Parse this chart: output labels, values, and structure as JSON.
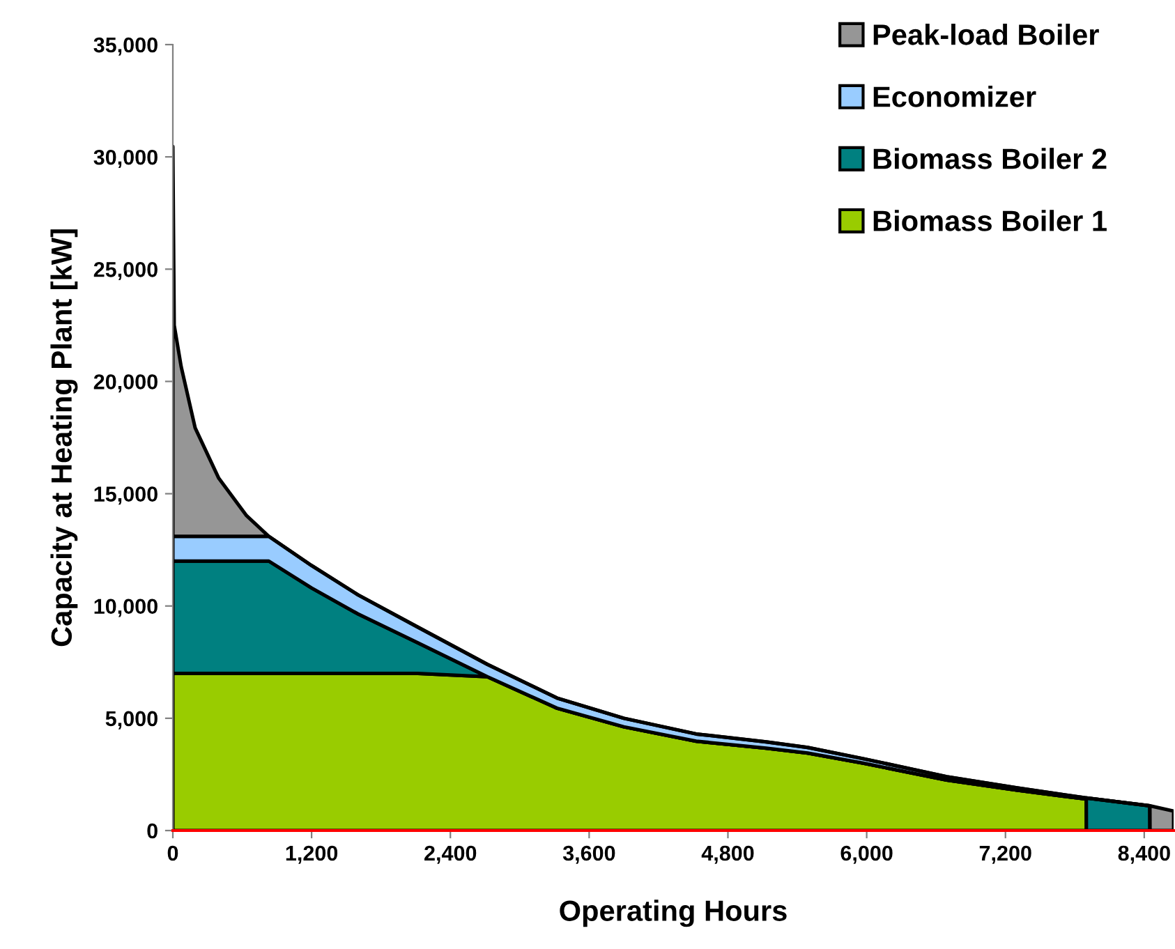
{
  "chart_data": {
    "type": "area",
    "stacked": true,
    "xlabel": "Operating Hours",
    "ylabel": "Capacity at Heating Plant [kW]",
    "x": [
      0,
      12,
      72,
      193,
      397,
      638,
      830,
      1200,
      1600,
      2118,
      2720,
      3322,
      3900,
      4526,
      5130,
      5489,
      5970,
      6692,
      7300,
      7899,
      7900,
      8449,
      8450,
      8654
    ],
    "series": [
      {
        "name": "Biomass Boiler 1",
        "color": "#99cc00",
        "values": [
          7000,
          7000,
          7000,
          7000,
          7000,
          7000,
          7000,
          7000,
          7000,
          7000,
          6850,
          5450,
          4620,
          3980,
          3670,
          3450,
          3000,
          2250,
          1800,
          1400,
          0,
          0,
          0,
          0
        ]
      },
      {
        "name": "Biomass Boiler 2",
        "color": "#008080",
        "values": [
          5000,
          5000,
          5000,
          5000,
          5000,
          5000,
          5000,
          3800,
          2650,
          1360,
          0,
          0,
          0,
          0,
          0,
          0,
          0,
          0,
          0,
          0,
          1450,
          1100,
          0,
          0
        ]
      },
      {
        "name": "Economizer",
        "color": "#99ccff",
        "values": [
          1100,
          1100,
          1100,
          1100,
          1100,
          1100,
          1100,
          1000,
          850,
          700,
          550,
          450,
          380,
          320,
          280,
          250,
          200,
          150,
          100,
          50,
          0,
          0,
          0,
          0
        ]
      },
      {
        "name": "Peak-load Boiler",
        "color": "#969696",
        "values": [
          17360,
          9400,
          7560,
          4830,
          2590,
          920,
          0,
          0,
          0,
          0,
          0,
          0,
          0,
          0,
          0,
          0,
          0,
          0,
          0,
          0,
          0,
          0,
          1100,
          870
        ]
      }
    ],
    "xlim": [
      0,
      8654
    ],
    "ylim": [
      0,
      35000
    ],
    "xticks": [
      0,
      {
        "value": 1200,
        "label": "1,200"
      },
      {
        "value": 2400,
        "label": "2,400"
      },
      {
        "value": 3600,
        "label": "3,600"
      },
      {
        "value": 4800,
        "label": "4,800"
      },
      {
        "value": 6000,
        "label": "6,000"
      },
      {
        "value": 7200,
        "label": "7,200"
      },
      {
        "value": 8400,
        "label": "8,400"
      }
    ],
    "yticks": [
      0,
      {
        "value": 5000,
        "label": "5,000"
      },
      {
        "value": 10000,
        "label": "10,000"
      },
      {
        "value": 15000,
        "label": "15,000"
      },
      {
        "value": 20000,
        "label": "20,000"
      },
      {
        "value": 25000,
        "label": "25,000"
      },
      {
        "value": 30000,
        "label": "30,000"
      },
      {
        "value": 35000,
        "label": "35,000"
      }
    ],
    "grid": false,
    "legend": "top right"
  }
}
